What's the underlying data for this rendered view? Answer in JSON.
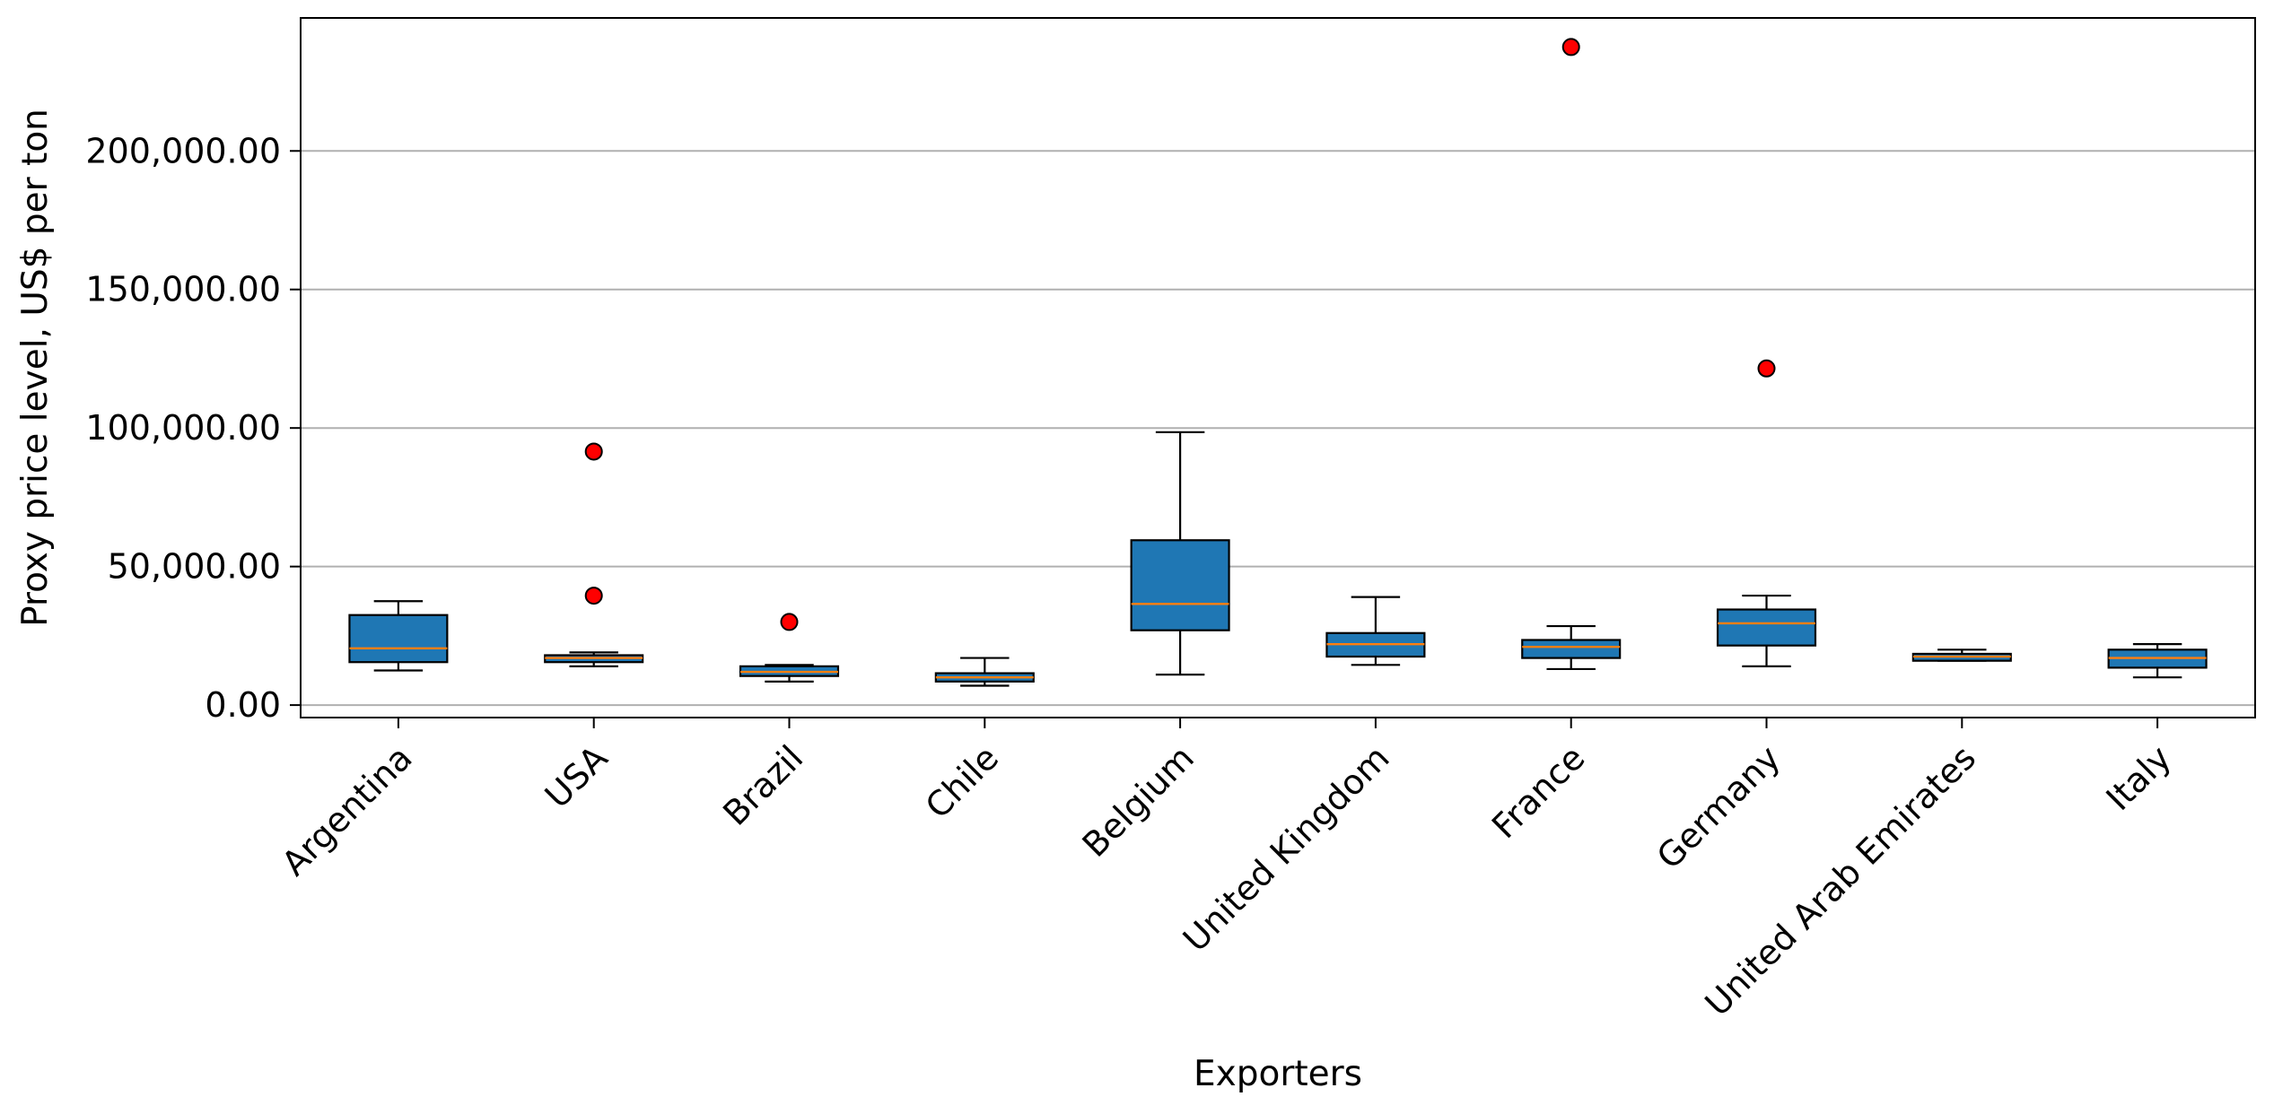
{
  "chart_data": {
    "type": "box",
    "title": "",
    "xlabel": "Exporters",
    "ylabel": "Proxy price level, US$ per ton",
    "ylim": [
      -4500,
      248000
    ],
    "yticks": [
      0,
      50000,
      100000,
      150000,
      200000
    ],
    "ytick_labels": [
      "0.00",
      "50,000.00",
      "100,000.00",
      "150,000.00",
      "200,000.00"
    ],
    "grid": "horizontal",
    "colors": {
      "box_fill": "#1f77b4",
      "median": "#ff7f0e",
      "outlier": "#ff0000",
      "grid": "#b0b0b0",
      "edge": "#000000"
    },
    "categories": [
      "Argentina",
      "USA",
      "Brazil",
      "Chile",
      "Belgium",
      "United Kingdom",
      "France",
      "Germany",
      "United Arab Emirates",
      "Italy"
    ],
    "boxes": [
      {
        "category": "Argentina",
        "whisker_low": 12500,
        "q1": 15500,
        "median": 20500,
        "q3": 32500,
        "whisker_high": 37500,
        "outliers": []
      },
      {
        "category": "USA",
        "whisker_low": 14000,
        "q1": 15500,
        "median": 17000,
        "q3": 18000,
        "whisker_high": 19000,
        "outliers": [
          91500,
          39500
        ]
      },
      {
        "category": "Brazil",
        "whisker_low": 8500,
        "q1": 10500,
        "median": 12000,
        "q3": 14000,
        "whisker_high": 14500,
        "outliers": [
          30000
        ]
      },
      {
        "category": "Chile",
        "whisker_low": 7000,
        "q1": 8500,
        "median": 10000,
        "q3": 11500,
        "whisker_high": 17000,
        "outliers": []
      },
      {
        "category": "Belgium",
        "whisker_low": 11000,
        "q1": 27000,
        "median": 36500,
        "q3": 59500,
        "whisker_high": 98500,
        "outliers": []
      },
      {
        "category": "United Kingdom",
        "whisker_low": 14500,
        "q1": 17500,
        "median": 22000,
        "q3": 26000,
        "whisker_high": 39000,
        "outliers": []
      },
      {
        "category": "France",
        "whisker_low": 13000,
        "q1": 17000,
        "median": 21000,
        "q3": 23500,
        "whisker_high": 28500,
        "outliers": [
          237500
        ]
      },
      {
        "category": "Germany",
        "whisker_low": 14000,
        "q1": 21500,
        "median": 29500,
        "q3": 34500,
        "whisker_high": 39500,
        "outliers": [
          121500
        ]
      },
      {
        "category": "United Arab Emirates",
        "whisker_low": 16000,
        "q1": 16000,
        "median": 17500,
        "q3": 18500,
        "whisker_high": 20000,
        "outliers": []
      },
      {
        "category": "Italy",
        "whisker_low": 10000,
        "q1": 13500,
        "median": 17000,
        "q3": 20000,
        "whisker_high": 22000,
        "outliers": []
      }
    ]
  }
}
